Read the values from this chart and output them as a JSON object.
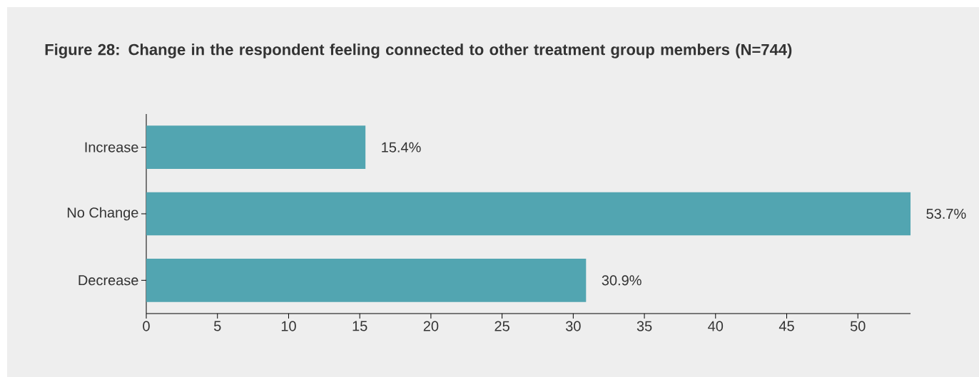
{
  "chart_data": {
    "type": "bar",
    "orientation": "horizontal",
    "title": "Figure 28: Change in the respondent feeling connected to other treatment group members (N=744)",
    "categories": [
      "Increase",
      "No Change",
      "Decrease"
    ],
    "values": [
      15.4,
      53.7,
      30.9
    ],
    "value_labels": [
      "15.4%",
      "53.7%",
      "30.9%"
    ],
    "color": "#52a5b1",
    "xlim": [
      0,
      53.7
    ],
    "xticks": [
      0,
      5,
      10,
      15,
      20,
      25,
      30,
      35,
      40,
      45,
      50
    ]
  }
}
